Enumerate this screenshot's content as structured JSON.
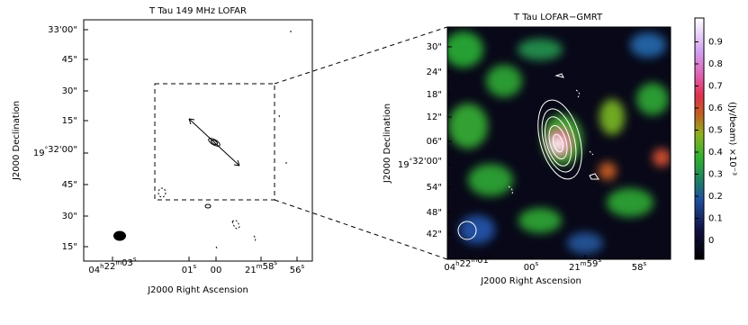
{
  "left_panel": {
    "title": "T Tau 149 MHz LOFAR",
    "xlabel": "J2000 Right Ascension",
    "ylabel": "J2000 Declination",
    "xticks": [
      "04h22m03s",
      "01s",
      "00",
      "21m58s",
      "56s"
    ],
    "yticks": [
      "33'00\"",
      "45\"",
      "30\"",
      "15\"",
      "19°32'00\"",
      "45\"",
      "30\"",
      "15\""
    ]
  },
  "right_panel": {
    "title": "T Tau LOFAR−GMRT",
    "xlabel": "J2000 Right Ascension",
    "ylabel": "J2000 Declination",
    "xticks": [
      "04h22m01s",
      "00s",
      "21m59s",
      "58s"
    ],
    "yticks": [
      "30\"",
      "24\"",
      "18\"",
      "12\"",
      "06\"",
      "19°32'00\"",
      "54\"",
      "48\"",
      "42\""
    ]
  },
  "colorbar": {
    "label": "(Jy/beam) ×10⁻³",
    "ticks": [
      0,
      0.1,
      0.2,
      0.3,
      0.4,
      0.5,
      0.6,
      0.7,
      0.8,
      0.9
    ]
  }
}
